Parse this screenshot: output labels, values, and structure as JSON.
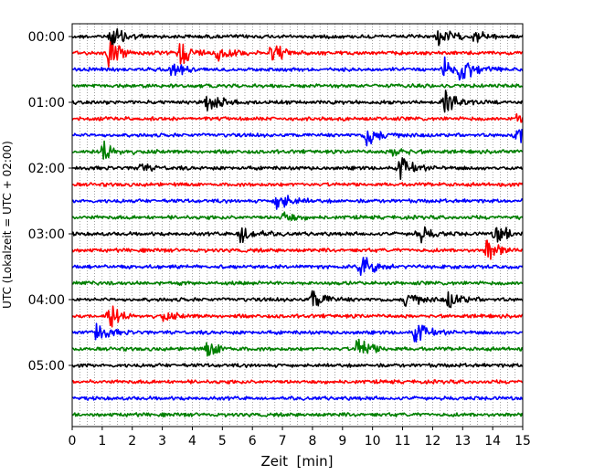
{
  "chart_data": {
    "type": "line",
    "title": "",
    "xlabel": "Zeit  [min]",
    "ylabel": "UTC (Lokalzeit = UTC + 02:00)",
    "xlim": [
      0,
      15
    ],
    "x_ticks": [
      "0",
      "1",
      "2",
      "3",
      "4",
      "5",
      "6",
      "7",
      "8",
      "9",
      "10",
      "11",
      "12",
      "13",
      "14",
      "15"
    ],
    "y_ticks": [
      "00:00",
      "01:00",
      "02:00",
      "03:00",
      "04:00",
      "05:00"
    ],
    "trace_interval_min": 15,
    "trace_count": 24,
    "trace_colors": [
      "#000000",
      "#ff0000",
      "#0000ff",
      "#008000"
    ],
    "grid_x": true,
    "events": [
      {
        "trace": 0,
        "x": 1.3,
        "amp": 1.6
      },
      {
        "trace": 0,
        "x": 12.2,
        "amp": 1.2
      },
      {
        "trace": 0,
        "x": 13.4,
        "amp": 0.8
      },
      {
        "trace": 1,
        "x": 1.2,
        "amp": 1.8
      },
      {
        "trace": 1,
        "x": 3.6,
        "amp": 1.6
      },
      {
        "trace": 1,
        "x": 4.8,
        "amp": 1.2
      },
      {
        "trace": 1,
        "x": 6.6,
        "amp": 1.5
      },
      {
        "trace": 2,
        "x": 3.3,
        "amp": 1.0
      },
      {
        "trace": 2,
        "x": 12.4,
        "amp": 1.8
      },
      {
        "trace": 2,
        "x": 12.9,
        "amp": 1.6
      },
      {
        "trace": 4,
        "x": 4.5,
        "amp": 1.4
      },
      {
        "trace": 4,
        "x": 12.4,
        "amp": 1.8
      },
      {
        "trace": 5,
        "x": 14.8,
        "amp": 0.8
      },
      {
        "trace": 6,
        "x": 9.8,
        "amp": 1.6
      },
      {
        "trace": 6,
        "x": 14.8,
        "amp": 1.4
      },
      {
        "trace": 7,
        "x": 1.0,
        "amp": 1.8
      },
      {
        "trace": 7,
        "x": 10.7,
        "amp": 0.8
      },
      {
        "trace": 8,
        "x": 2.2,
        "amp": 0.6
      },
      {
        "trace": 8,
        "x": 10.9,
        "amp": 1.4
      },
      {
        "trace": 10,
        "x": 6.8,
        "amp": 1.8
      },
      {
        "trace": 11,
        "x": 7.0,
        "amp": 0.8
      },
      {
        "trace": 12,
        "x": 5.6,
        "amp": 1.6
      },
      {
        "trace": 12,
        "x": 11.5,
        "amp": 1.2
      },
      {
        "trace": 12,
        "x": 14.1,
        "amp": 1.6
      },
      {
        "trace": 13,
        "x": 13.8,
        "amp": 1.6
      },
      {
        "trace": 14,
        "x": 9.6,
        "amp": 1.6
      },
      {
        "trace": 16,
        "x": 8.0,
        "amp": 1.4
      },
      {
        "trace": 16,
        "x": 11.1,
        "amp": 1.2
      },
      {
        "trace": 16,
        "x": 12.5,
        "amp": 1.2
      },
      {
        "trace": 17,
        "x": 1.2,
        "amp": 1.8
      },
      {
        "trace": 17,
        "x": 3.0,
        "amp": 0.6
      },
      {
        "trace": 18,
        "x": 0.7,
        "amp": 1.6
      },
      {
        "trace": 18,
        "x": 11.4,
        "amp": 1.4
      },
      {
        "trace": 19,
        "x": 4.5,
        "amp": 1.2
      },
      {
        "trace": 19,
        "x": 9.5,
        "amp": 1.8
      }
    ]
  }
}
